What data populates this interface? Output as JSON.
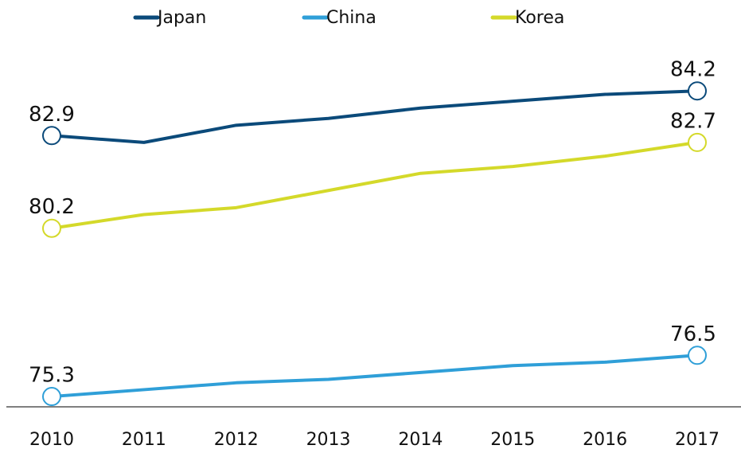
{
  "chart_data": {
    "type": "line",
    "x": [
      "2010",
      "2011",
      "2012",
      "2013",
      "2014",
      "2015",
      "2016",
      "2017"
    ],
    "series": [
      {
        "name": "Japan",
        "color": "#0b4a7a",
        "values": [
          82.9,
          82.7,
          83.2,
          83.4,
          83.7,
          83.9,
          84.1,
          84.2
        ]
      },
      {
        "name": "China",
        "color": "#2f9fd8",
        "values": [
          75.3,
          75.5,
          75.7,
          75.8,
          76.0,
          76.2,
          76.3,
          76.5
        ]
      },
      {
        "name": "Korea",
        "color": "#d4d92a",
        "values": [
          80.2,
          80.6,
          80.8,
          81.3,
          81.8,
          82.0,
          82.3,
          82.7
        ]
      }
    ],
    "labeled_indices": [
      0,
      7
    ],
    "ylim": [
      75,
      86.5
    ],
    "legend": "top"
  }
}
